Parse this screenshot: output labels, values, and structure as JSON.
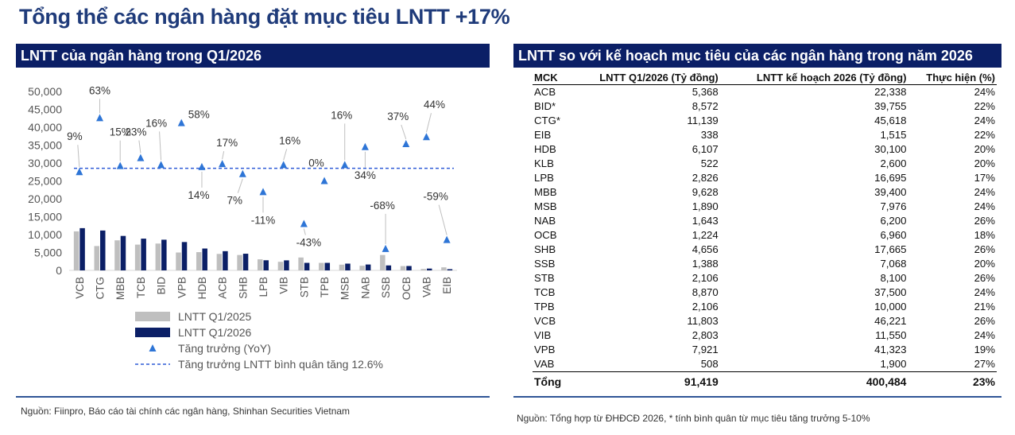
{
  "title": "Tổng thể các ngân hàng đặt mục tiêu LNTT +17%",
  "left_panel": {
    "header": "LNTT của ngân hàng trong Q1/2026",
    "source": "Nguồn: Fiinpro, Báo cáo tài chính các ngân hàng, Shinhan Securities Vietnam"
  },
  "right_panel": {
    "header": "LNTT so với kế hoạch mục tiêu của các ngân hàng trong năm 2026",
    "columns": [
      "MCK",
      "LNTT Q1/2026 (Tỷ đồng)",
      "LNTT kế hoạch 2026 (Tỷ đồng)",
      "Thực hiện (%)"
    ],
    "rows": [
      [
        "ACB",
        "5,368",
        "22,338",
        "24%"
      ],
      [
        "BID*",
        "8,572",
        "39,755",
        "22%"
      ],
      [
        "CTG*",
        "11,139",
        "45,618",
        "24%"
      ],
      [
        "EIB",
        "338",
        "1,515",
        "22%"
      ],
      [
        "HDB",
        "6,107",
        "30,100",
        "20%"
      ],
      [
        "KLB",
        "522",
        "2,600",
        "20%"
      ],
      [
        "LPB",
        "2,826",
        "16,695",
        "17%"
      ],
      [
        "MBB",
        "9,628",
        "39,400",
        "24%"
      ],
      [
        "MSB",
        "1,890",
        "7,976",
        "24%"
      ],
      [
        "NAB",
        "1,643",
        "6,200",
        "26%"
      ],
      [
        "OCB",
        "1,224",
        "6,960",
        "18%"
      ],
      [
        "SHB",
        "4,656",
        "17,665",
        "26%"
      ],
      [
        "SSB",
        "1,388",
        "7,068",
        "20%"
      ],
      [
        "STB",
        "2,106",
        "8,100",
        "26%"
      ],
      [
        "TCB",
        "8,870",
        "37,500",
        "24%"
      ],
      [
        "TPB",
        "2,106",
        "10,000",
        "21%"
      ],
      [
        "VCB",
        "11,803",
        "46,221",
        "26%"
      ],
      [
        "VIB",
        "2,803",
        "11,550",
        "24%"
      ],
      [
        "VPB",
        "7,921",
        "41,323",
        "19%"
      ],
      [
        "VAB",
        "508",
        "1,900",
        "27%"
      ]
    ],
    "total": [
      "Tổng",
      "91,419",
      "400,484",
      "23%"
    ],
    "source": "Nguồn: Tổng hợp từ ĐHĐCĐ 2026, * tính bình quân từ mục tiêu tăng trưởng 5-10%"
  },
  "chart_data": {
    "type": "bar",
    "categories": [
      "VCB",
      "CTG",
      "MBB",
      "TCB",
      "BID",
      "VPB",
      "HDB",
      "ACB",
      "SHB",
      "LPB",
      "VIB",
      "STB",
      "TPB",
      "MSB",
      "NAB",
      "SSB",
      "OCB",
      "VAB",
      "EIB"
    ],
    "series": [
      {
        "name": "LNTT Q1/2025",
        "color": "#bfbfbf",
        "values": [
          10900,
          6800,
          8400,
          7200,
          7500,
          5000,
          5100,
          4600,
          4300,
          3100,
          2400,
          3600,
          2100,
          1600,
          1300,
          4300,
          1200,
          400,
          850
        ]
      },
      {
        "name": "LNTT Q1/2026",
        "color": "#0b1f66",
        "values": [
          11803,
          11139,
          9628,
          8870,
          8572,
          7921,
          6107,
          5368,
          4656,
          2826,
          2803,
          2106,
          2106,
          1890,
          1643,
          1388,
          1224,
          508,
          338
        ]
      }
    ],
    "growth": {
      "name": "Tăng trưởng (YoY)",
      "color": "#2e75d6",
      "labels": [
        "9%",
        "63%",
        "15%",
        "23%",
        "16%",
        "58%",
        "14%",
        "17%",
        "7%",
        "-11%",
        "16%",
        "-43%",
        "0%",
        "16%",
        "34%",
        "-68%",
        "37%",
        "44%",
        "-59%"
      ],
      "values": [
        9,
        63,
        15,
        23,
        16,
        58,
        14,
        17,
        7,
        -11,
        16,
        -43,
        0,
        16,
        34,
        -68,
        37,
        44,
        -59
      ]
    },
    "average": {
      "name": "Tăng trưởng LNTT bình quân tăng 12.6%",
      "value": 12.6,
      "color": "#2e5bd6"
    },
    "y_ticks": [
      "0",
      "5,000",
      "10,000",
      "15,000",
      "20,000",
      "25,000",
      "30,000",
      "35,000",
      "40,000",
      "45,000",
      "50,000"
    ],
    "ylim": [
      0,
      50000
    ]
  }
}
